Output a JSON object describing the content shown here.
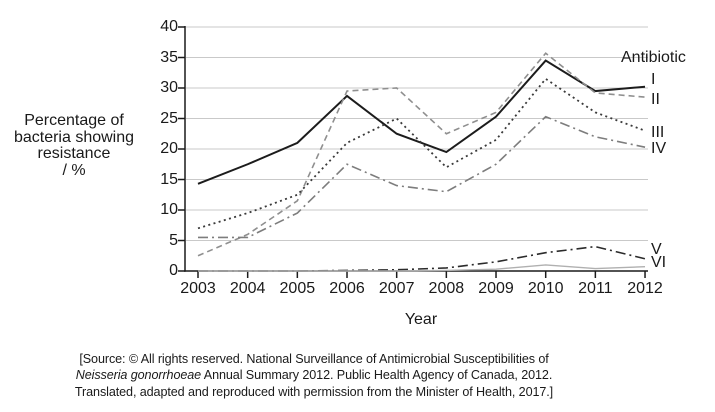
{
  "chart_data": {
    "type": "line",
    "xlabel": "Year",
    "ylabel_lines": [
      "Percentage of",
      "bacteria showing",
      "resistance",
      "/ %"
    ],
    "legend_title": "Antibiotic",
    "x": [
      2003,
      2004,
      2005,
      2006,
      2007,
      2008,
      2009,
      2010,
      2011,
      2012
    ],
    "ylim": [
      0,
      40
    ],
    "ytick_step": 5,
    "grid": "horizontal",
    "legend_position": "right",
    "axis_color": "#1a1a1a",
    "grid_color": "#c9c9c9",
    "series": [
      {
        "name": "I",
        "style": "solid",
        "color": "#1c1c1c",
        "width": 2,
        "dash": "",
        "values": [
          14.3,
          17.5,
          21,
          28.7,
          22.5,
          19.5,
          25.3,
          34.5,
          29.5,
          30.2
        ]
      },
      {
        "name": "II",
        "style": "dashed",
        "color": "#8f8f8f",
        "width": 1.6,
        "dash": "6 4",
        "values": [
          2.5,
          6,
          11.5,
          29.5,
          30,
          22.5,
          26,
          35.7,
          29.2,
          28.5
        ]
      },
      {
        "name": "III",
        "style": "dotted",
        "color": "#3a3a3a",
        "width": 1.8,
        "dash": "2 3.4",
        "values": [
          7,
          9.5,
          12.5,
          21,
          25,
          17,
          21.5,
          31.5,
          26,
          23
        ]
      },
      {
        "name": "IV",
        "style": "dashdot",
        "color": "#7d7d7d",
        "width": 1.6,
        "dash": "10 4 2 4",
        "values": [
          5.5,
          5.5,
          9.5,
          17.5,
          14,
          13,
          17.5,
          25.3,
          22,
          20.3
        ]
      },
      {
        "name": "V",
        "style": "dashdot",
        "color": "#2b2b2b",
        "width": 1.6,
        "dash": "10 4 2 4",
        "values": [
          0,
          0,
          0,
          0.1,
          0.2,
          0.5,
          1.5,
          3,
          4,
          2
        ]
      },
      {
        "name": "VI",
        "style": "solid",
        "color": "#b0b0b0",
        "width": 1.4,
        "dash": "",
        "values": [
          0,
          0,
          0,
          0,
          0,
          0.1,
          0.3,
          1,
          0.4,
          0.7
        ]
      }
    ]
  },
  "source": {
    "line1": "[Source: © All rights reserved. National Surveillance of Antimicrobial Susceptibilities of",
    "line2_italic": "Neisseria gonorrhoeae",
    "line2_rest": " Annual Summary 2012. Public Health Agency of Canada, 2012.",
    "line3": "Translated, adapted and reproduced with permission from the Minister of Health, 2017.]"
  }
}
